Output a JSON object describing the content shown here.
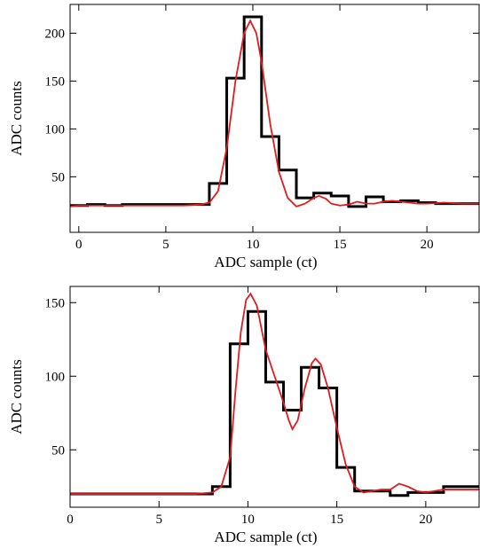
{
  "chart_data": [
    {
      "type": "line",
      "xlabel": "ADC sample (ct)",
      "ylabel": "ADC counts",
      "xlim": [
        -0.5,
        23
      ],
      "ylim": [
        -8,
        230
      ],
      "xticks": [
        0,
        5,
        10,
        15,
        20
      ],
      "yticks": [
        50,
        100,
        150,
        200
      ],
      "series": [
        {
          "color": "#000000",
          "step": "mid",
          "x": [
            0,
            1,
            2,
            3,
            4,
            5,
            6,
            7,
            8,
            9,
            10,
            11,
            12,
            13,
            14,
            15,
            16,
            17,
            18,
            19,
            20,
            21,
            22
          ],
          "values": [
            20,
            21,
            20,
            21,
            21,
            21,
            21,
            21,
            43,
            153,
            217,
            92,
            57,
            28,
            33,
            30,
            19,
            29,
            24,
            25,
            23,
            22,
            22
          ]
        },
        {
          "color": "#e41a1c",
          "x": [
            -0.5,
            0,
            1,
            2,
            3,
            4,
            5,
            6,
            7,
            7.5,
            8,
            8.5,
            9,
            9.5,
            9.85,
            10.2,
            10.5,
            11,
            11.5,
            12,
            12.5,
            13,
            13.5,
            13.8,
            14.2,
            14.5,
            15,
            15.5,
            16,
            16.5,
            17,
            17.5,
            18,
            18.5,
            19,
            19.5,
            20,
            21,
            22,
            23
          ],
          "values": [
            19,
            20,
            20,
            20,
            20,
            20,
            20,
            20,
            21,
            23,
            35,
            80,
            150,
            200,
            213,
            200,
            170,
            105,
            55,
            28,
            19,
            22,
            28,
            30,
            27,
            22,
            20,
            21,
            24,
            22,
            22,
            24,
            25,
            24,
            23,
            22,
            22,
            23,
            22,
            22
          ]
        }
      ]
    },
    {
      "type": "line",
      "xlabel": "ADC sample (ct)",
      "ylabel": "ADC counts",
      "xlim": [
        0,
        23
      ],
      "ylim": [
        11,
        161
      ],
      "xticks": [
        0,
        5,
        10,
        15,
        20
      ],
      "yticks": [
        50,
        100,
        150
      ],
      "series": [
        {
          "color": "#000000",
          "step": "post",
          "x": [
            0,
            8,
            9,
            10,
            11,
            12,
            13,
            14,
            15,
            16,
            17,
            18,
            19,
            20,
            21
          ],
          "values": [
            20,
            25,
            122,
            144,
            96,
            77,
            106,
            92,
            38,
            22,
            22,
            19,
            21,
            21,
            25
          ]
        },
        {
          "color": "#e41a1c",
          "x": [
            0,
            1,
            2,
            3,
            4,
            5,
            6,
            7,
            8,
            8.5,
            9,
            9.3,
            9.6,
            9.9,
            10.15,
            10.5,
            11,
            11.5,
            12,
            12.3,
            12.5,
            12.8,
            13.2,
            13.6,
            13.8,
            14.1,
            14.5,
            15,
            15.5,
            16,
            16.5,
            17,
            17.5,
            18,
            18.5,
            19,
            19.5,
            20,
            21,
            22,
            23
          ],
          "values": [
            20,
            20,
            20,
            20,
            20,
            20,
            20,
            20,
            21,
            25,
            45,
            90,
            130,
            152,
            156,
            148,
            118,
            100,
            82,
            70,
            64,
            70,
            92,
            109,
            112,
            108,
            92,
            65,
            40,
            25,
            21,
            22,
            23,
            23,
            27,
            25,
            22,
            21,
            23,
            23,
            23
          ]
        }
      ]
    }
  ]
}
